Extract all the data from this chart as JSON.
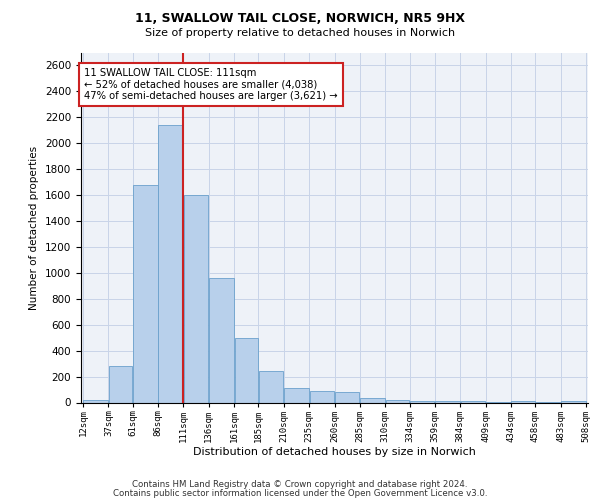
{
  "title_line1": "11, SWALLOW TAIL CLOSE, NORWICH, NR5 9HX",
  "title_line2": "Size of property relative to detached houses in Norwich",
  "xlabel": "Distribution of detached houses by size in Norwich",
  "ylabel": "Number of detached properties",
  "footer_line1": "Contains HM Land Registry data © Crown copyright and database right 2024.",
  "footer_line2": "Contains public sector information licensed under the Open Government Licence v3.0.",
  "annotation_line1": "11 SWALLOW TAIL CLOSE: 111sqm",
  "annotation_line2": "← 52% of detached houses are smaller (4,038)",
  "annotation_line3": "47% of semi-detached houses are larger (3,621) →",
  "property_sqm": 111,
  "bar_centers": [
    24.5,
    49,
    73.5,
    98.5,
    123.5,
    148.5,
    173,
    197.5,
    222.5,
    247.5,
    272.5,
    297.5,
    322,
    346.5,
    371.5,
    396.5,
    421.5,
    446,
    470.5,
    495.5
  ],
  "bar_widths": [
    25,
    24,
    25,
    25,
    25,
    25,
    24,
    25,
    25,
    25,
    25,
    25,
    24,
    25,
    25,
    25,
    25,
    24,
    25,
    25
  ],
  "bar_heights": [
    20,
    280,
    1680,
    2140,
    1600,
    960,
    500,
    240,
    115,
    90,
    80,
    35,
    20,
    15,
    15,
    12,
    5,
    15,
    5,
    10
  ],
  "tick_labels": [
    "12sqm",
    "37sqm",
    "61sqm",
    "86sqm",
    "111sqm",
    "136sqm",
    "161sqm",
    "185sqm",
    "210sqm",
    "235sqm",
    "260sqm",
    "285sqm",
    "310sqm",
    "334sqm",
    "359sqm",
    "384sqm",
    "409sqm",
    "434sqm",
    "458sqm",
    "483sqm",
    "508sqm"
  ],
  "tick_positions": [
    12,
    37,
    61,
    86,
    111,
    136,
    161,
    185,
    210,
    235,
    260,
    285,
    310,
    334,
    359,
    384,
    409,
    434,
    458,
    483,
    508
  ],
  "bar_color": "#b8d0eb",
  "bar_edge_color": "#6aa0cc",
  "highlight_color": "#cc2222",
  "grid_color": "#c8d4e8",
  "bg_color": "#eef2f8",
  "ylim": [
    0,
    2700
  ],
  "yticks": [
    0,
    200,
    400,
    600,
    800,
    1000,
    1200,
    1400,
    1600,
    1800,
    2000,
    2200,
    2400,
    2600
  ],
  "xlim": [
    12,
    508
  ]
}
